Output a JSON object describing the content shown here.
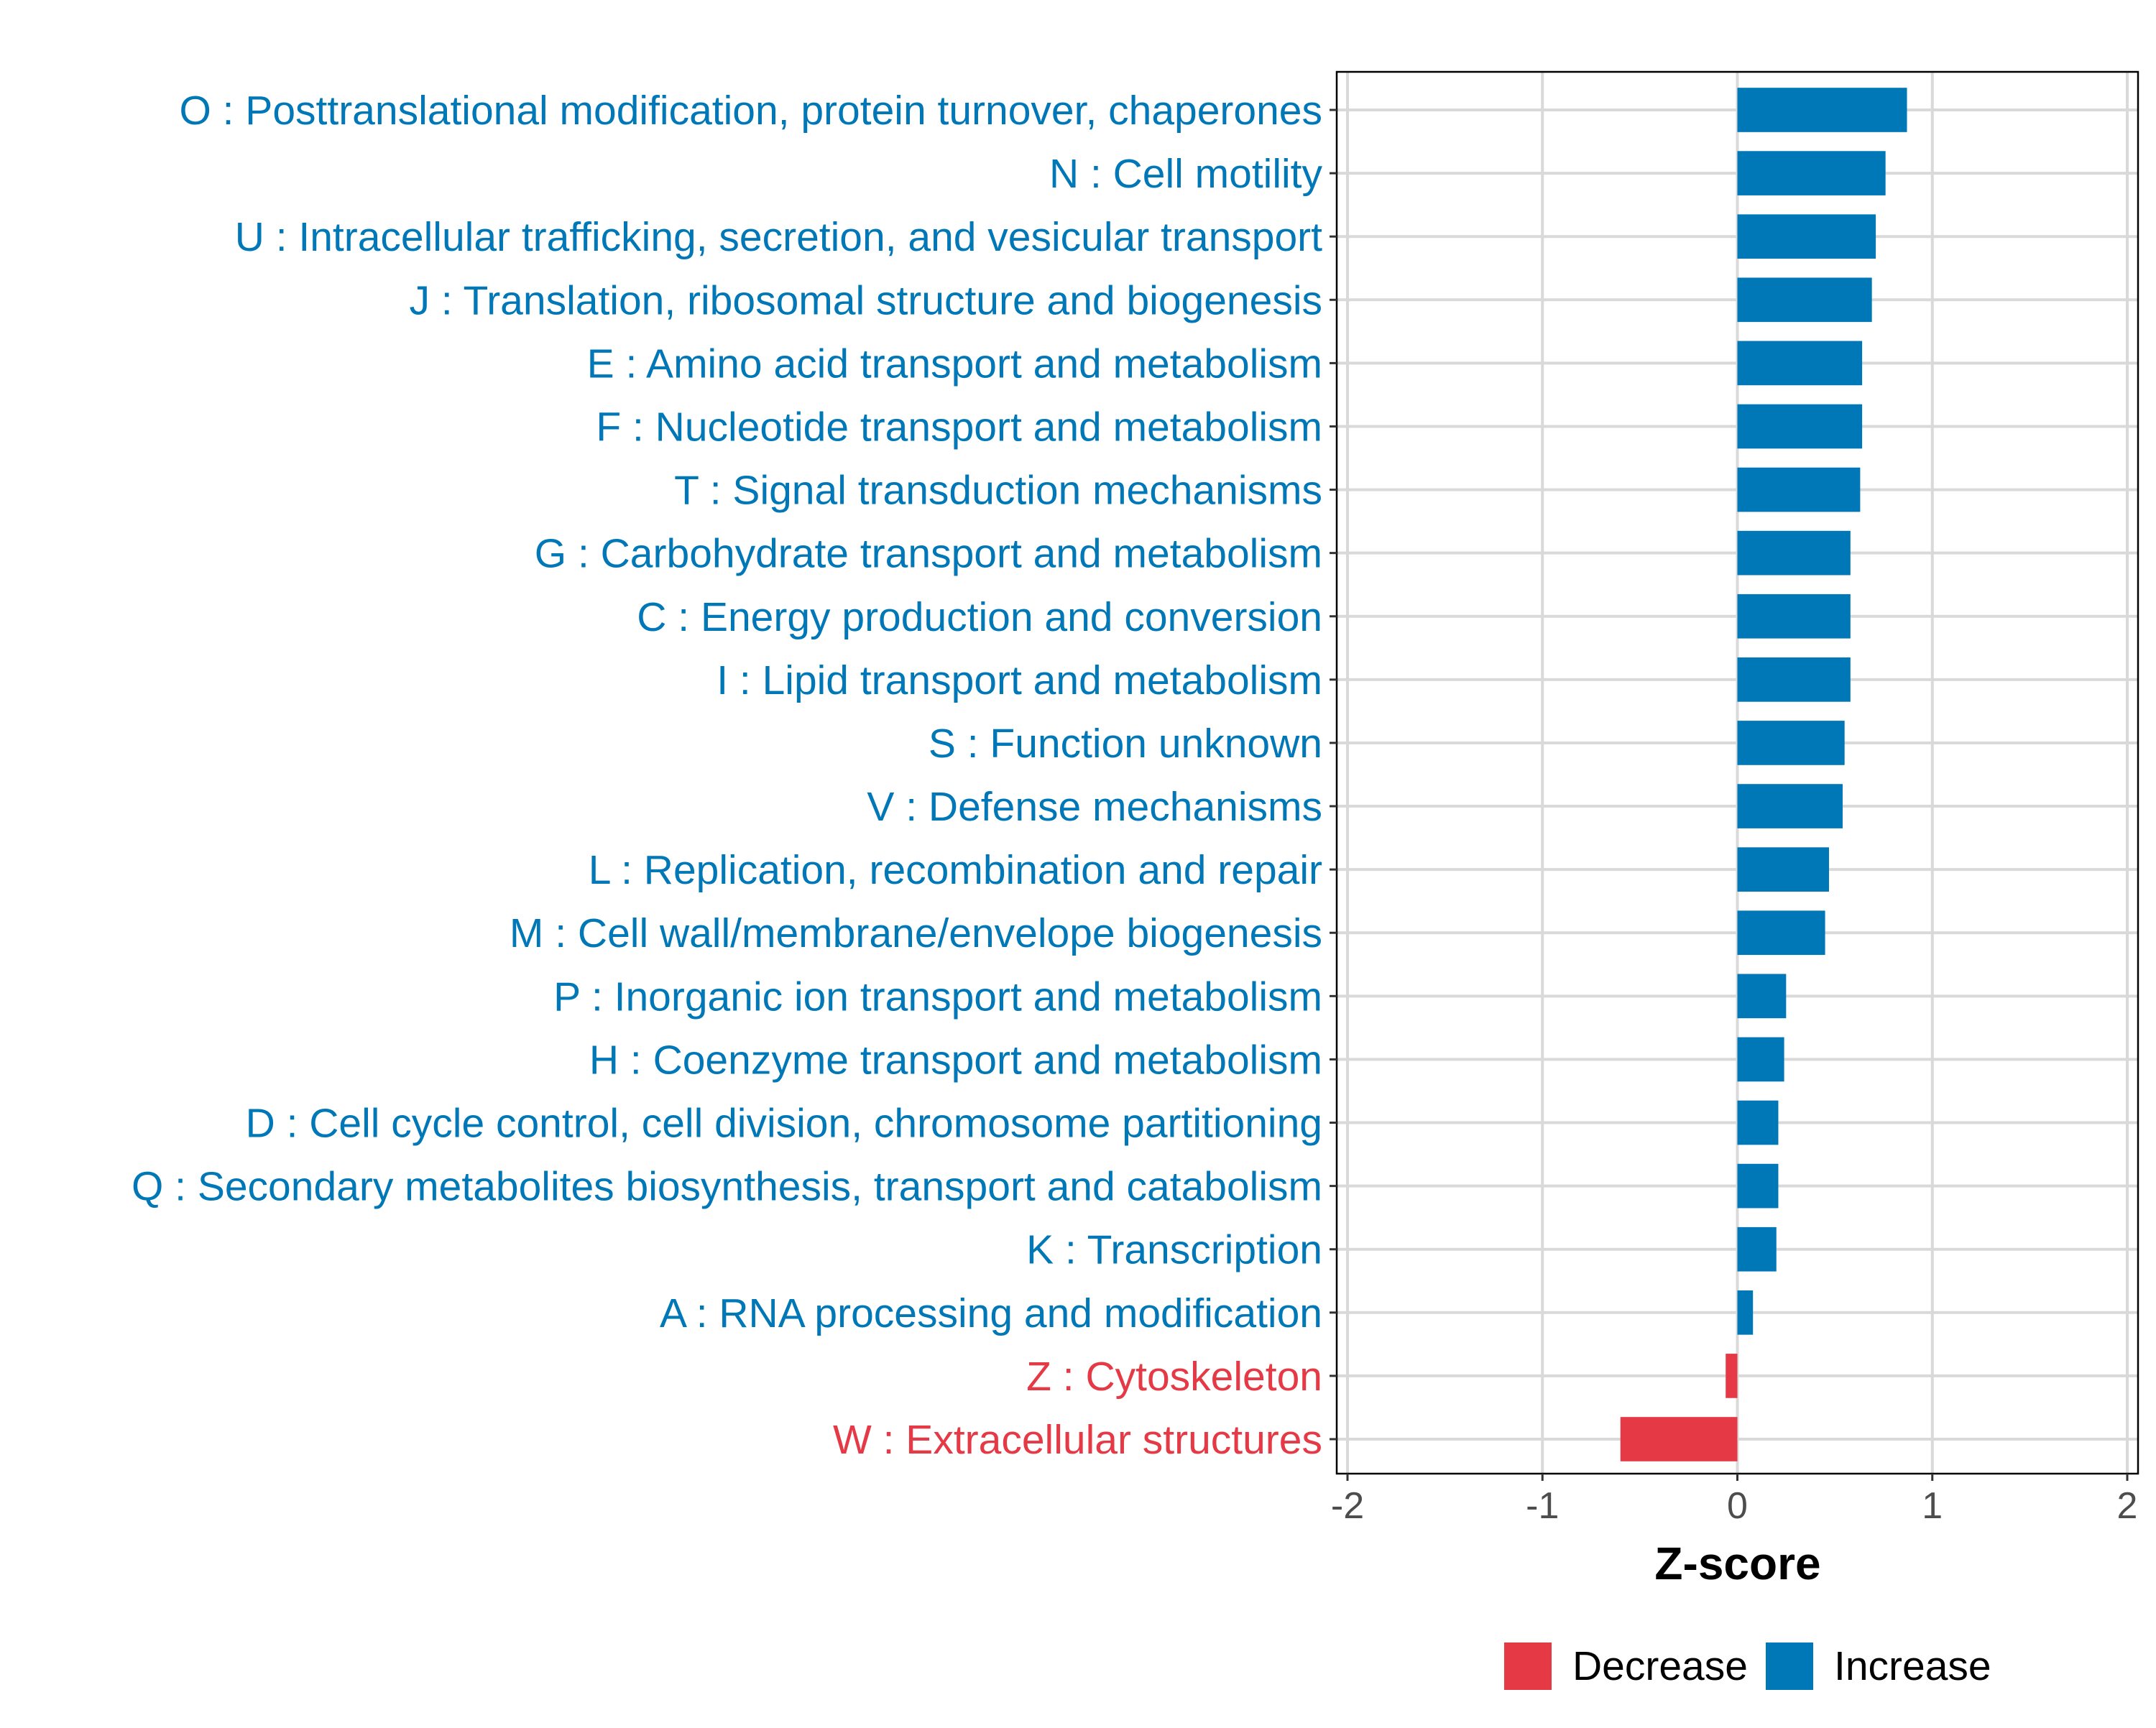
{
  "chart_data": {
    "type": "bar",
    "orientation": "horizontal",
    "title": "",
    "xlabel": "Z-score",
    "ylabel": "",
    "xlim": [
      -2,
      2
    ],
    "xticks": [
      "-2",
      "-1",
      "0",
      "1",
      "2"
    ],
    "xtick_values": [
      -2,
      -1,
      0,
      1,
      2
    ],
    "grid": true,
    "legend_position": "bottom",
    "colors": {
      "Decrease": "#E63946",
      "Increase": "#0077B6"
    },
    "legend": [
      {
        "label": "Decrease",
        "color": "#E63946"
      },
      {
        "label": "Increase",
        "color": "#0077B6"
      }
    ],
    "categories": [
      "O : Posttranslational modification, protein turnover, chaperones",
      "N : Cell motility",
      "U : Intracellular trafficking, secretion, and vesicular transport",
      "J : Translation, ribosomal structure and biogenesis",
      "E : Amino acid transport and metabolism",
      "F : Nucleotide transport and metabolism",
      "T : Signal transduction mechanisms",
      "G : Carbohydrate transport and metabolism",
      "C : Energy production and conversion",
      "I : Lipid transport and metabolism",
      "S : Function unknown",
      "V : Defense mechanisms",
      "L : Replication, recombination and repair",
      "M : Cell wall/membrane/envelope biogenesis",
      "P : Inorganic ion transport and metabolism",
      "H : Coenzyme transport and metabolism",
      "D : Cell cycle control, cell division, chromosome partitioning",
      "Q : Secondary metabolites biosynthesis, transport and catabolism",
      "K : Transcription",
      "A : RNA processing and modification",
      "Z : Cytoskeleton",
      "W : Extracellular structures"
    ],
    "values": [
      0.87,
      0.76,
      0.71,
      0.69,
      0.64,
      0.64,
      0.63,
      0.58,
      0.58,
      0.58,
      0.55,
      0.54,
      0.47,
      0.45,
      0.25,
      0.24,
      0.21,
      0.21,
      0.2,
      0.08,
      -0.06,
      -0.6
    ]
  }
}
